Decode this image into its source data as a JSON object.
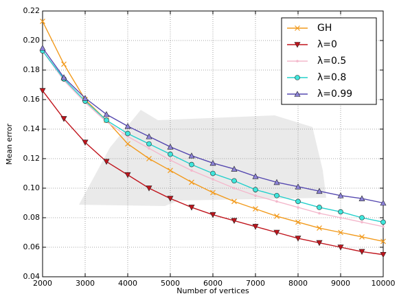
{
  "chart_data": {
    "type": "line",
    "xlabel": "Number of vertices",
    "ylabel": "Mean error",
    "x": [
      2000,
      2500,
      3000,
      3500,
      4000,
      4500,
      5000,
      5500,
      6000,
      6500,
      7000,
      7500,
      8000,
      8500,
      9000,
      9500,
      10000
    ],
    "series": [
      {
        "name": "GH",
        "color": "#f29a1c",
        "marker": "x",
        "values": [
          0.213,
          0.184,
          0.16,
          0.146,
          0.13,
          0.12,
          0.112,
          0.104,
          0.097,
          0.091,
          0.086,
          0.081,
          0.077,
          0.073,
          0.07,
          0.067,
          0.064
        ]
      },
      {
        "name": "λ=0",
        "color": "#c0141c",
        "marker": "triangle-down",
        "values": [
          0.166,
          0.147,
          0.131,
          0.118,
          0.109,
          0.1,
          0.093,
          0.087,
          0.082,
          0.078,
          0.074,
          0.07,
          0.066,
          0.063,
          0.06,
          0.057,
          0.055
        ]
      },
      {
        "name": "λ=0.5",
        "color": "#f4b8cc",
        "marker": "dot",
        "values": [
          0.193,
          0.173,
          0.158,
          0.145,
          0.135,
          0.127,
          0.119,
          0.112,
          0.106,
          0.1,
          0.095,
          0.091,
          0.087,
          0.083,
          0.08,
          0.077,
          0.074
        ]
      },
      {
        "name": "λ=0.8",
        "color": "#22d0cc",
        "marker": "circle",
        "values": [
          0.193,
          0.174,
          0.159,
          0.146,
          0.137,
          0.13,
          0.123,
          0.116,
          0.11,
          0.105,
          0.099,
          0.095,
          0.091,
          0.087,
          0.084,
          0.08,
          0.077
        ]
      },
      {
        "name": "λ=0.99",
        "color": "#5548b0",
        "marker": "triangle-up",
        "values": [
          0.195,
          0.175,
          0.161,
          0.15,
          0.142,
          0.135,
          0.128,
          0.122,
          0.117,
          0.113,
          0.108,
          0.104,
          0.101,
          0.098,
          0.095,
          0.093,
          0.09
        ]
      }
    ],
    "xlim": [
      2000,
      10000
    ],
    "xticks": [
      2000,
      3000,
      4000,
      5000,
      6000,
      7000,
      8000,
      9000,
      10000
    ],
    "ylim": [
      0.04,
      0.22
    ],
    "yticks": [
      0.04,
      0.06,
      0.08,
      {
        "value": 0.1,
        "label": "0.10"
      },
      0.12,
      0.14,
      0.16,
      0.18,
      {
        "value": 0.2,
        "label": "0.20"
      },
      0.22
    ],
    "grid": true,
    "legend": "upper right"
  }
}
